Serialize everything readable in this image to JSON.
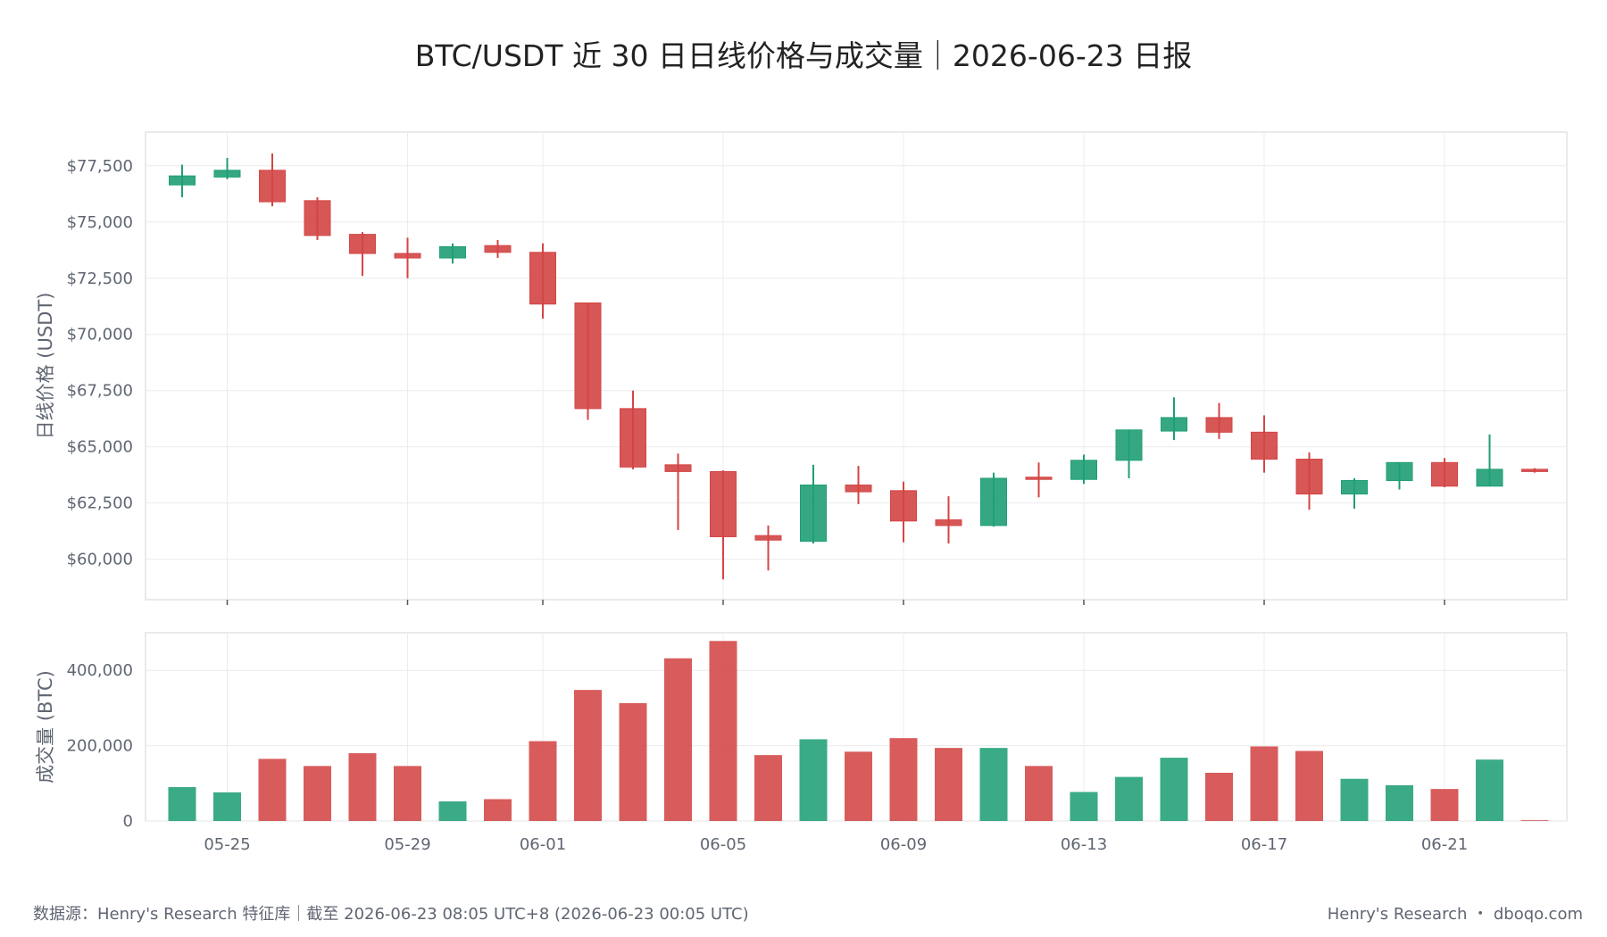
{
  "chart_data": {
    "type": "candlestick",
    "title": "BTC/USDT 近 30 日日线价格与成交量｜2026-06-23 日报",
    "price_ylabel": "日线价格 (USDT)",
    "volume_ylabel": "成交量 (BTC)",
    "price_yticks": [
      {
        "value": 60000,
        "label": "$60,000"
      },
      {
        "value": 62500,
        "label": "$62,500"
      },
      {
        "value": 65000,
        "label": "$65,000"
      },
      {
        "value": 67500,
        "label": "$67,500"
      },
      {
        "value": 70000,
        "label": "$70,000"
      },
      {
        "value": 72500,
        "label": "$72,500"
      },
      {
        "value": 75000,
        "label": "$75,000"
      },
      {
        "value": 77500,
        "label": "$77,500"
      }
    ],
    "volume_yticks": [
      {
        "value": 0,
        "label": "0"
      },
      {
        "value": 200000,
        "label": "200,000"
      },
      {
        "value": 400000,
        "label": "400,000"
      }
    ],
    "x_ticks": [
      "05-25",
      "05-29",
      "06-01",
      "06-05",
      "06-09",
      "06-13",
      "06-17",
      "06-21"
    ],
    "price_ylim": [
      58200,
      79000
    ],
    "volume_ylim": [
      0,
      500000
    ],
    "grid": true,
    "up_color": "#1f9e76",
    "down_color": "#d34545",
    "candles": [
      {
        "date": "05-24",
        "open": 76650,
        "high": 77550,
        "low": 76100,
        "close": 77050,
        "volume": 90000
      },
      {
        "date": "05-25",
        "open": 77000,
        "high": 77850,
        "low": 76900,
        "close": 77300,
        "volume": 76000
      },
      {
        "date": "05-26",
        "open": 77300,
        "high": 78050,
        "low": 75700,
        "close": 75900,
        "volume": 165000
      },
      {
        "date": "05-27",
        "open": 75950,
        "high": 76100,
        "low": 74200,
        "close": 74400,
        "volume": 146000
      },
      {
        "date": "05-28",
        "open": 74450,
        "high": 74550,
        "low": 72600,
        "close": 73600,
        "volume": 180000
      },
      {
        "date": "05-29",
        "open": 73600,
        "high": 74300,
        "low": 72500,
        "close": 73400,
        "volume": 146000
      },
      {
        "date": "05-30",
        "open": 73400,
        "high": 74050,
        "low": 73150,
        "close": 73900,
        "volume": 52000
      },
      {
        "date": "05-31",
        "open": 73950,
        "high": 74200,
        "low": 73400,
        "close": 73650,
        "volume": 58000
      },
      {
        "date": "06-01",
        "open": 73650,
        "high": 74050,
        "low": 70700,
        "close": 71350,
        "volume": 212000
      },
      {
        "date": "06-02",
        "open": 71400,
        "high": 71400,
        "low": 66200,
        "close": 66700,
        "volume": 348000
      },
      {
        "date": "06-03",
        "open": 66700,
        "high": 67500,
        "low": 64000,
        "close": 64100,
        "volume": 313000
      },
      {
        "date": "06-04",
        "open": 64200,
        "high": 64700,
        "low": 61300,
        "close": 63900,
        "volume": 432000
      },
      {
        "date": "06-05",
        "open": 63900,
        "high": 63950,
        "low": 59100,
        "close": 61000,
        "volume": 478000
      },
      {
        "date": "06-06",
        "open": 61050,
        "high": 61500,
        "low": 59500,
        "close": 60850,
        "volume": 175000
      },
      {
        "date": "06-07",
        "open": 60800,
        "high": 64200,
        "low": 60700,
        "close": 63300,
        "volume": 217000
      },
      {
        "date": "06-08",
        "open": 63300,
        "high": 64150,
        "low": 62450,
        "close": 63000,
        "volume": 184000
      },
      {
        "date": "06-09",
        "open": 63050,
        "high": 63450,
        "low": 60750,
        "close": 61700,
        "volume": 220000
      },
      {
        "date": "06-10",
        "open": 61750,
        "high": 62800,
        "low": 60700,
        "close": 61500,
        "volume": 194000
      },
      {
        "date": "06-11",
        "open": 61500,
        "high": 63850,
        "low": 61450,
        "close": 63600,
        "volume": 194000
      },
      {
        "date": "06-12",
        "open": 63650,
        "high": 64300,
        "low": 62750,
        "close": 63550,
        "volume": 146000
      },
      {
        "date": "06-13",
        "open": 63550,
        "high": 64650,
        "low": 63350,
        "close": 64400,
        "volume": 77000
      },
      {
        "date": "06-14",
        "open": 64400,
        "high": 65750,
        "low": 63600,
        "close": 65750,
        "volume": 117000
      },
      {
        "date": "06-15",
        "open": 65700,
        "high": 67200,
        "low": 65300,
        "close": 66300,
        "volume": 168000
      },
      {
        "date": "06-16",
        "open": 66300,
        "high": 66950,
        "low": 65350,
        "close": 65650,
        "volume": 128000
      },
      {
        "date": "06-17",
        "open": 65650,
        "high": 66400,
        "low": 63850,
        "close": 64450,
        "volume": 198000
      },
      {
        "date": "06-18",
        "open": 64450,
        "high": 64750,
        "low": 62200,
        "close": 62900,
        "volume": 186000
      },
      {
        "date": "06-19",
        "open": 62900,
        "high": 63600,
        "low": 62250,
        "close": 63500,
        "volume": 112000
      },
      {
        "date": "06-20",
        "open": 63500,
        "high": 64300,
        "low": 63100,
        "close": 64300,
        "volume": 95000
      },
      {
        "date": "06-21",
        "open": 64300,
        "high": 64500,
        "low": 63200,
        "close": 63250,
        "volume": 85000
      },
      {
        "date": "06-22",
        "open": 63250,
        "high": 65550,
        "low": 63250,
        "close": 64000,
        "volume": 163000
      },
      {
        "date": "06-23",
        "open": 64000,
        "high": 64050,
        "low": 63850,
        "close": 63900,
        "volume": 2000
      }
    ]
  },
  "footer": {
    "source": "数据源：Henry's Research 特征库｜截至 2026-06-23 08:05 UTC+8 (2026-06-23 00:05 UTC)",
    "brand": "Henry's Research ・ dboqo.com"
  }
}
